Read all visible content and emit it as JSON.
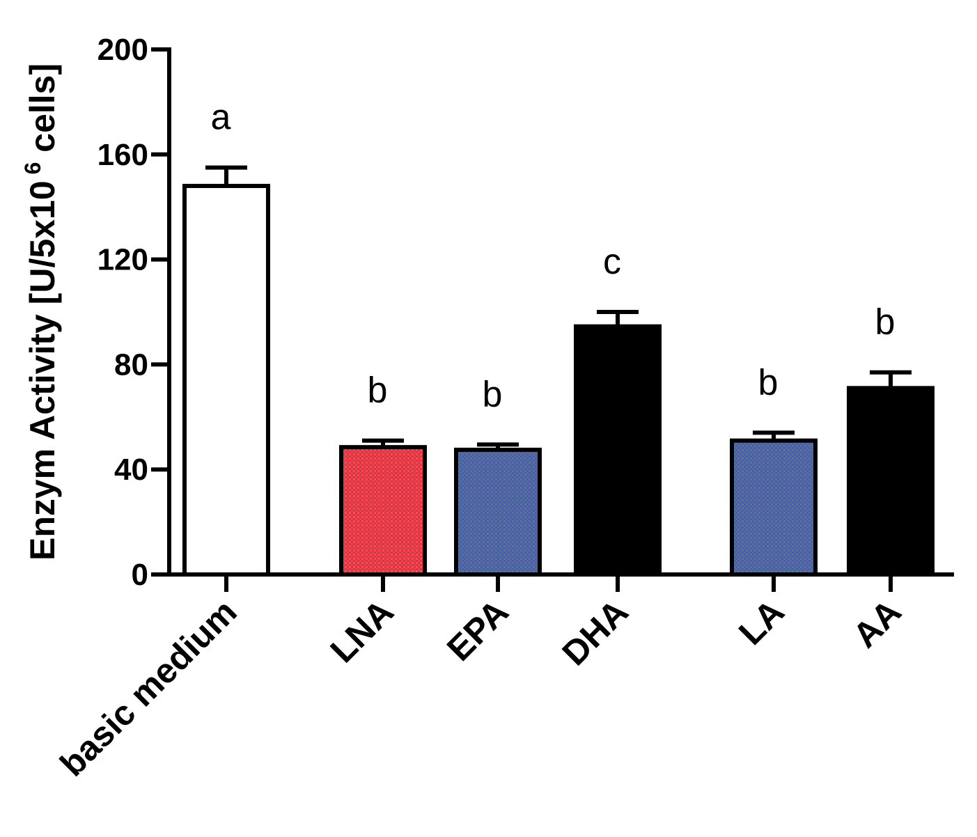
{
  "chart_data": {
    "type": "bar",
    "title": "",
    "xlabel": "",
    "ylabel": {
      "prefix": "Enzym Activity [U/5x10",
      "superscript": "6",
      "suffix": " cells]"
    },
    "ylim": [
      0,
      200
    ],
    "yticks": [
      "0",
      "40",
      "80",
      "120",
      "160",
      "200"
    ],
    "grid": false,
    "legend": "none",
    "categories": [
      "basic medium",
      "LNA",
      "EPA",
      "DHA",
      "LA",
      "AA"
    ],
    "values": [
      148,
      48.5,
      47.5,
      94.5,
      51,
      71
    ],
    "errors": [
      7,
      2.5,
      2,
      5.5,
      3,
      6
    ],
    "significance_labels": [
      "a",
      "b",
      "b",
      "c",
      "b",
      "b"
    ],
    "bar_colors": [
      "#ffffff",
      "#e8313a",
      "#4a5fb0",
      "#000000",
      "#4a5fb0",
      "#000000"
    ],
    "edge_color": "#000000"
  }
}
